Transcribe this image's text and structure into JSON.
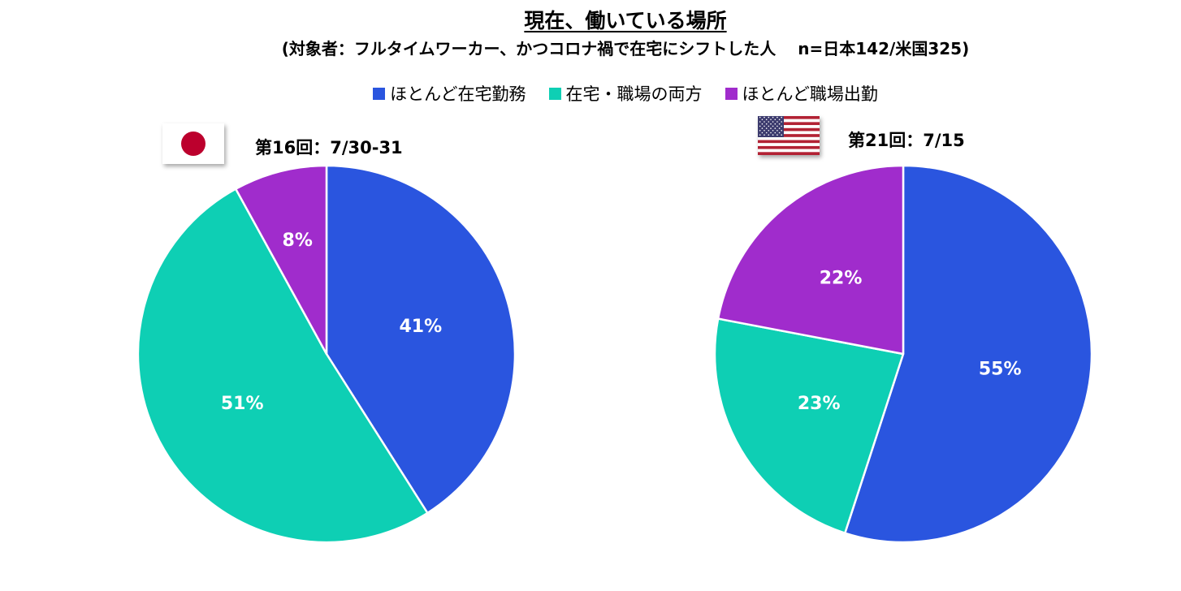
{
  "title": "現在、働いている場所",
  "subtitle": "(対象者：フルタイムワーカー、かつコロナ禍で在宅にシフトした人　 n=日本142/米国325)",
  "legend": {
    "items": [
      {
        "label": "ほとんど在宅勤務",
        "color": "#2a55df"
      },
      {
        "label": "在宅・職場の両方",
        "color": "#0ecfb4"
      },
      {
        "label": "ほとんど職場出勤",
        "color": "#a02ccc"
      }
    ]
  },
  "chart_data": [
    {
      "type": "pie",
      "round_label": "第16回：7/30-31",
      "flag": "japan-flag-icon",
      "categories": [
        "ほとんど在宅勤務",
        "在宅・職場の両方",
        "ほとんど職場出勤"
      ],
      "values": [
        41,
        51,
        8
      ],
      "data_labels": [
        "41%",
        "51%",
        "8%"
      ],
      "colors": [
        "#2a55df",
        "#0ecfb4",
        "#a02ccc"
      ],
      "start": "12 o'clock",
      "direction": "clockwise"
    },
    {
      "type": "pie",
      "round_label": "第21回：7/15",
      "flag": "usa-flag-icon",
      "categories": [
        "ほとんど在宅勤務",
        "在宅・職場の両方",
        "ほとんど職場出勤"
      ],
      "values": [
        55,
        23,
        22
      ],
      "data_labels": [
        "55%",
        "23%",
        "22%"
      ],
      "colors": [
        "#2a55df",
        "#0ecfb4",
        "#a02ccc"
      ],
      "start": "12 o'clock",
      "direction": "clockwise"
    }
  ]
}
